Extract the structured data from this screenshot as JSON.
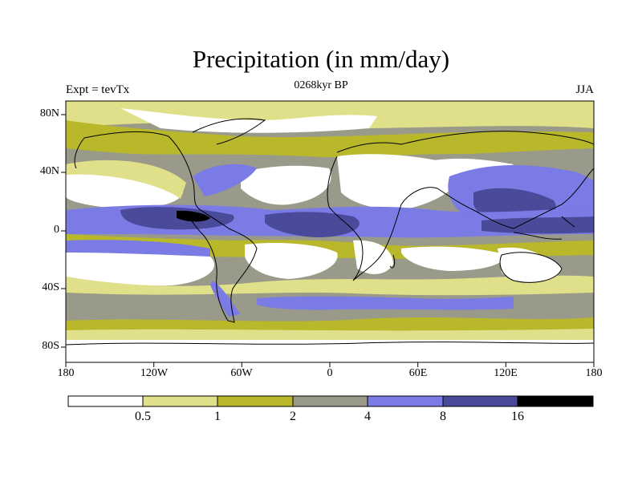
{
  "title": "Precipitation (in mm/day)",
  "left_label": "Expt = tevTx",
  "center_label": "0268kyr BP",
  "right_label": "JJA",
  "lat_ticks": [
    "80N",
    "40N",
    "0",
    "40S",
    "80S"
  ],
  "lon_ticks": [
    "180",
    "120W",
    "60W",
    "0",
    "60E",
    "120E",
    "180"
  ],
  "colorbar": {
    "labels": [
      "0.5",
      "1",
      "2",
      "4",
      "8",
      "16"
    ],
    "colors": [
      "#ffffff",
      "#e0e08a",
      "#b8b82a",
      "#9a9a8a",
      "#7b7be6",
      "#4a4a9a",
      "#000000"
    ]
  }
}
